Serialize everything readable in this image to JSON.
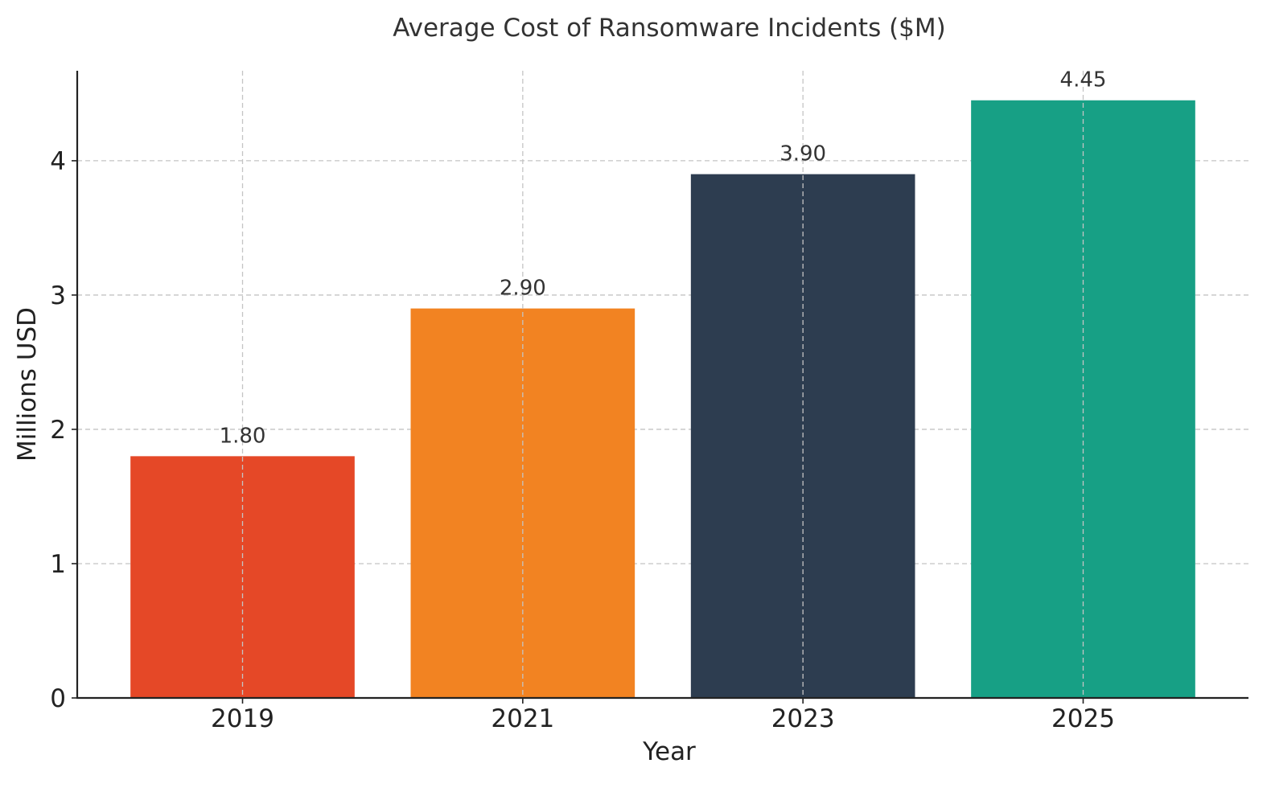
{
  "chart_data": {
    "type": "bar",
    "title": "Average Cost of Ransomware Incidents ($M)",
    "xlabel": "Year",
    "ylabel": "Millions USD",
    "categories": [
      "2019",
      "2021",
      "2023",
      "2025"
    ],
    "values": [
      1.8,
      2.9,
      3.9,
      4.45
    ],
    "data_labels": [
      "1.80",
      "2.90",
      "3.90",
      "4.45"
    ],
    "colors": [
      "#e54827",
      "#f28322",
      "#2d3d50",
      "#17a085"
    ],
    "ylim": [
      0,
      4.67
    ],
    "yticks": [
      0,
      1,
      2,
      3,
      4
    ],
    "ytick_labels": [
      "0",
      "1",
      "2",
      "3",
      "4"
    ],
    "grid": true,
    "legend": "none"
  }
}
